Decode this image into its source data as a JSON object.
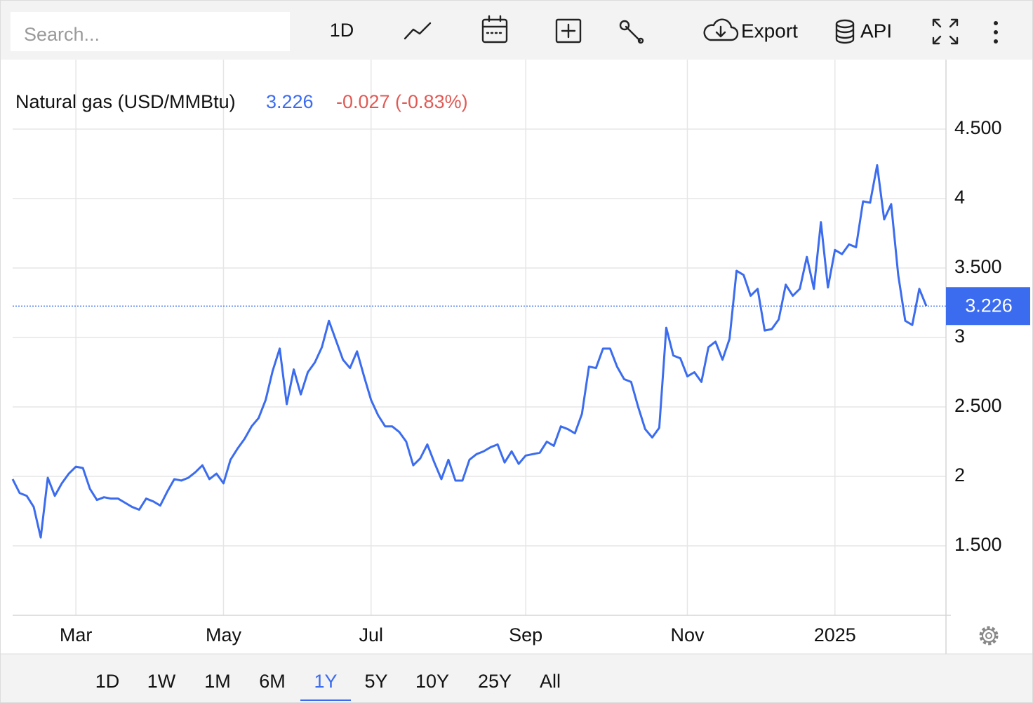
{
  "toolbar": {
    "search_placeholder": "Search...",
    "interval": "1D",
    "export": "Export",
    "api": "API"
  },
  "chart_data": {
    "type": "line",
    "series": [
      {
        "name": "Natural gas (USD/MMBtu)",
        "color": "#3b6cf0",
        "values": [
          1.98,
          1.88,
          1.86,
          1.78,
          1.56,
          1.99,
          1.86,
          1.95,
          2.02,
          2.07,
          2.06,
          1.91,
          1.83,
          1.85,
          1.84,
          1.84,
          1.81,
          1.78,
          1.76,
          1.84,
          1.82,
          1.79,
          1.89,
          1.98,
          1.97,
          1.99,
          2.03,
          2.08,
          1.98,
          2.02,
          1.95,
          2.12,
          2.2,
          2.27,
          2.36,
          2.42,
          2.55,
          2.76,
          2.92,
          2.52,
          2.77,
          2.59,
          2.75,
          2.82,
          2.93,
          3.12,
          2.98,
          2.84,
          2.78,
          2.9,
          2.72,
          2.55,
          2.44,
          2.36,
          2.36,
          2.32,
          2.25,
          2.08,
          2.13,
          2.23,
          2.1,
          1.98,
          2.12,
          1.97,
          1.97,
          2.12,
          2.16,
          2.18,
          2.21,
          2.23,
          2.1,
          2.18,
          2.09,
          2.15,
          2.16,
          2.17,
          2.25,
          2.22,
          2.36,
          2.34,
          2.31,
          2.45,
          2.79,
          2.78,
          2.92,
          2.92,
          2.79,
          2.7,
          2.68,
          2.5,
          2.34,
          2.28,
          2.35,
          3.07,
          2.87,
          2.85,
          2.72,
          2.75,
          2.68,
          2.93,
          2.97,
          2.84,
          2.99,
          3.48,
          3.45,
          3.3,
          3.35,
          3.05,
          3.06,
          3.13,
          3.38,
          3.3,
          3.35,
          3.58,
          3.35,
          3.83,
          3.36,
          3.63,
          3.6,
          3.67,
          3.65,
          3.98,
          3.97,
          4.24,
          3.85,
          3.96,
          3.45,
          3.12,
          3.09,
          3.35,
          3.226
        ]
      }
    ],
    "categories": [
      null,
      null,
      null,
      null,
      null,
      null,
      null,
      null,
      null,
      "Mar",
      null,
      null,
      null,
      null,
      null,
      null,
      null,
      null,
      null,
      null,
      null,
      null,
      null,
      null,
      null,
      null,
      null,
      null,
      null,
      null,
      "May",
      null,
      null,
      null,
      null,
      null,
      null,
      null,
      null,
      null,
      null,
      null,
      null,
      null,
      null,
      null,
      null,
      null,
      null,
      null,
      null,
      "Jul",
      null,
      null,
      null,
      null,
      null,
      null,
      null,
      null,
      null,
      null,
      null,
      null,
      null,
      null,
      null,
      null,
      null,
      null,
      null,
      null,
      null,
      "Sep",
      null,
      null,
      null,
      null,
      null,
      null,
      null,
      null,
      null,
      null,
      null,
      null,
      null,
      null,
      null,
      null,
      null,
      null,
      null,
      null,
      null,
      null,
      "Nov",
      null,
      null,
      null,
      null,
      null,
      null,
      null,
      null,
      null,
      null,
      null,
      null,
      null,
      null,
      null,
      null,
      null,
      null,
      null,
      null,
      "2025",
      null,
      null,
      null,
      null,
      null,
      null,
      null,
      null,
      null,
      null,
      null,
      null,
      null
    ],
    "change": "-0.027 (-0.83%)",
    "change_color": "#e05a55",
    "ylim": [
      1,
      5
    ],
    "yticks": [
      {
        "value": 1.5,
        "label": "1.500"
      },
      2,
      {
        "value": 2.5,
        "label": "2.500"
      },
      3,
      {
        "value": 3.5,
        "label": "3.500"
      },
      4,
      {
        "value": 4.5,
        "label": "4.500"
      }
    ],
    "grid": true,
    "last_value_line": true
  },
  "range_buttons": {
    "options": [
      "1D",
      "1W",
      "1M",
      "6M",
      "1Y",
      "5Y",
      "10Y",
      "25Y",
      "All"
    ],
    "selected": "1Y"
  }
}
